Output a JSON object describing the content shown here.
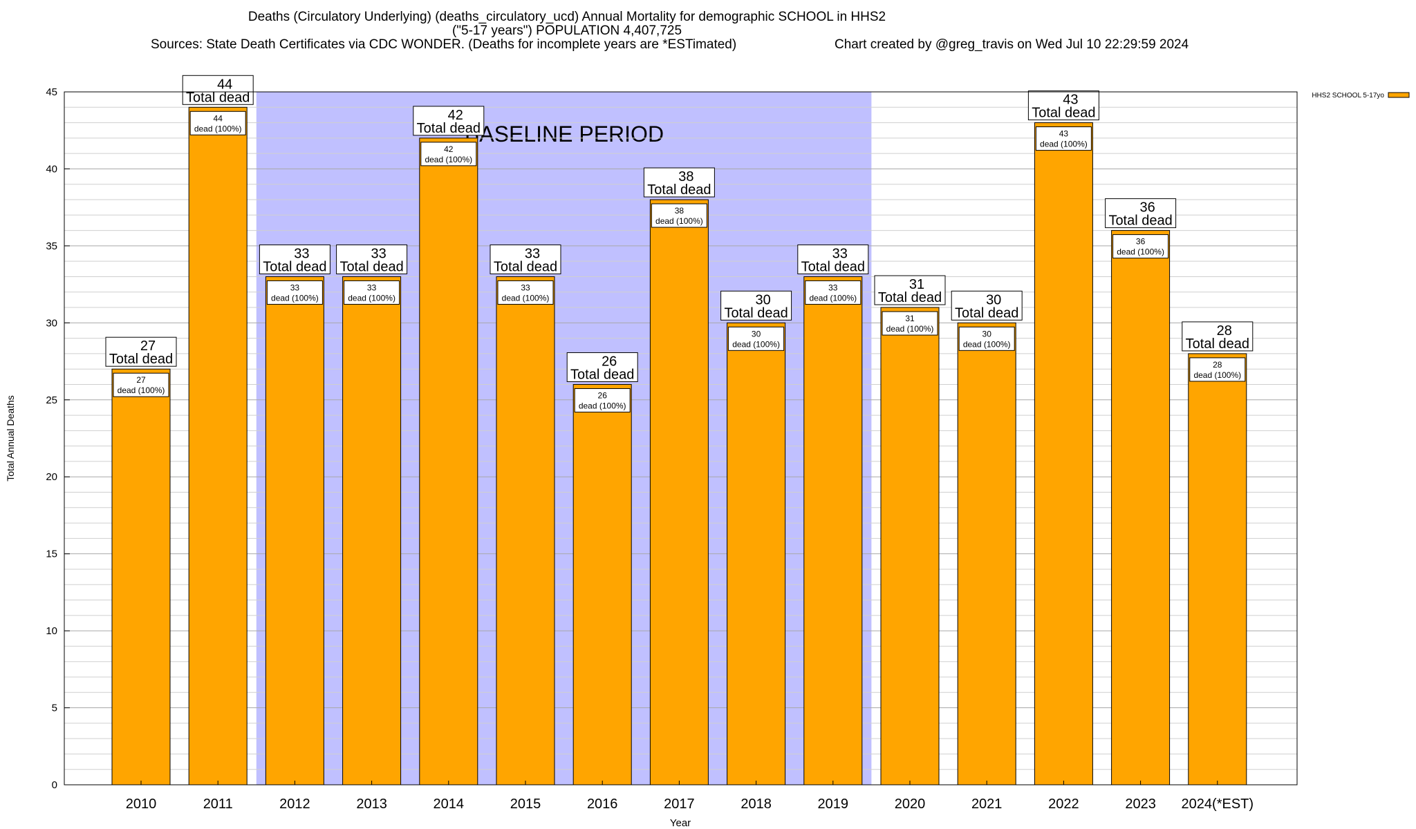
{
  "title": {
    "line1": "Deaths (Circulatory Underlying) (deaths_circulatory_ucd) Annual Mortality for demographic SCHOOL in HHS2",
    "line2": "(\"5-17 years\") POPULATION 4,407,725",
    "line3_left": "Sources: State Death Certificates via CDC WONDER. (Deaths for incomplete years are *ESTimated)",
    "line3_right": "Chart created by @greg_travis on Wed Jul 10 22:29:59 2024"
  },
  "chart_data": {
    "type": "bar",
    "title": "Deaths (Circulatory Underlying) (deaths_circulatory_ucd) Annual Mortality for demographic SCHOOL in HHS2",
    "xlabel": "Year",
    "ylabel": "Total Annual Deaths",
    "ylim": [
      0,
      45
    ],
    "yticks": [
      0,
      5,
      10,
      15,
      20,
      25,
      30,
      35,
      40,
      45
    ],
    "grid": true,
    "categories": [
      "2010",
      "2011",
      "2012",
      "2013",
      "2014",
      "2015",
      "2016",
      "2017",
      "2018",
      "2019",
      "2020",
      "2021",
      "2022",
      "2023",
      "2024(*EST)"
    ],
    "series": [
      {
        "name": "HHS2 SCHOOL 5-17yo",
        "color": "#ffa500",
        "values": [
          27,
          44,
          33,
          33,
          42,
          33,
          26,
          38,
          30,
          33,
          31,
          30,
          43,
          36,
          28
        ]
      }
    ],
    "total_label_suffix": "Total dead",
    "inner_label_suffix": "dead (100%)",
    "baseline": {
      "label": "BASELINE PERIOD",
      "start": "2012",
      "end": "2019",
      "color": "#c0c0ff"
    },
    "legend_position": "top-right"
  }
}
